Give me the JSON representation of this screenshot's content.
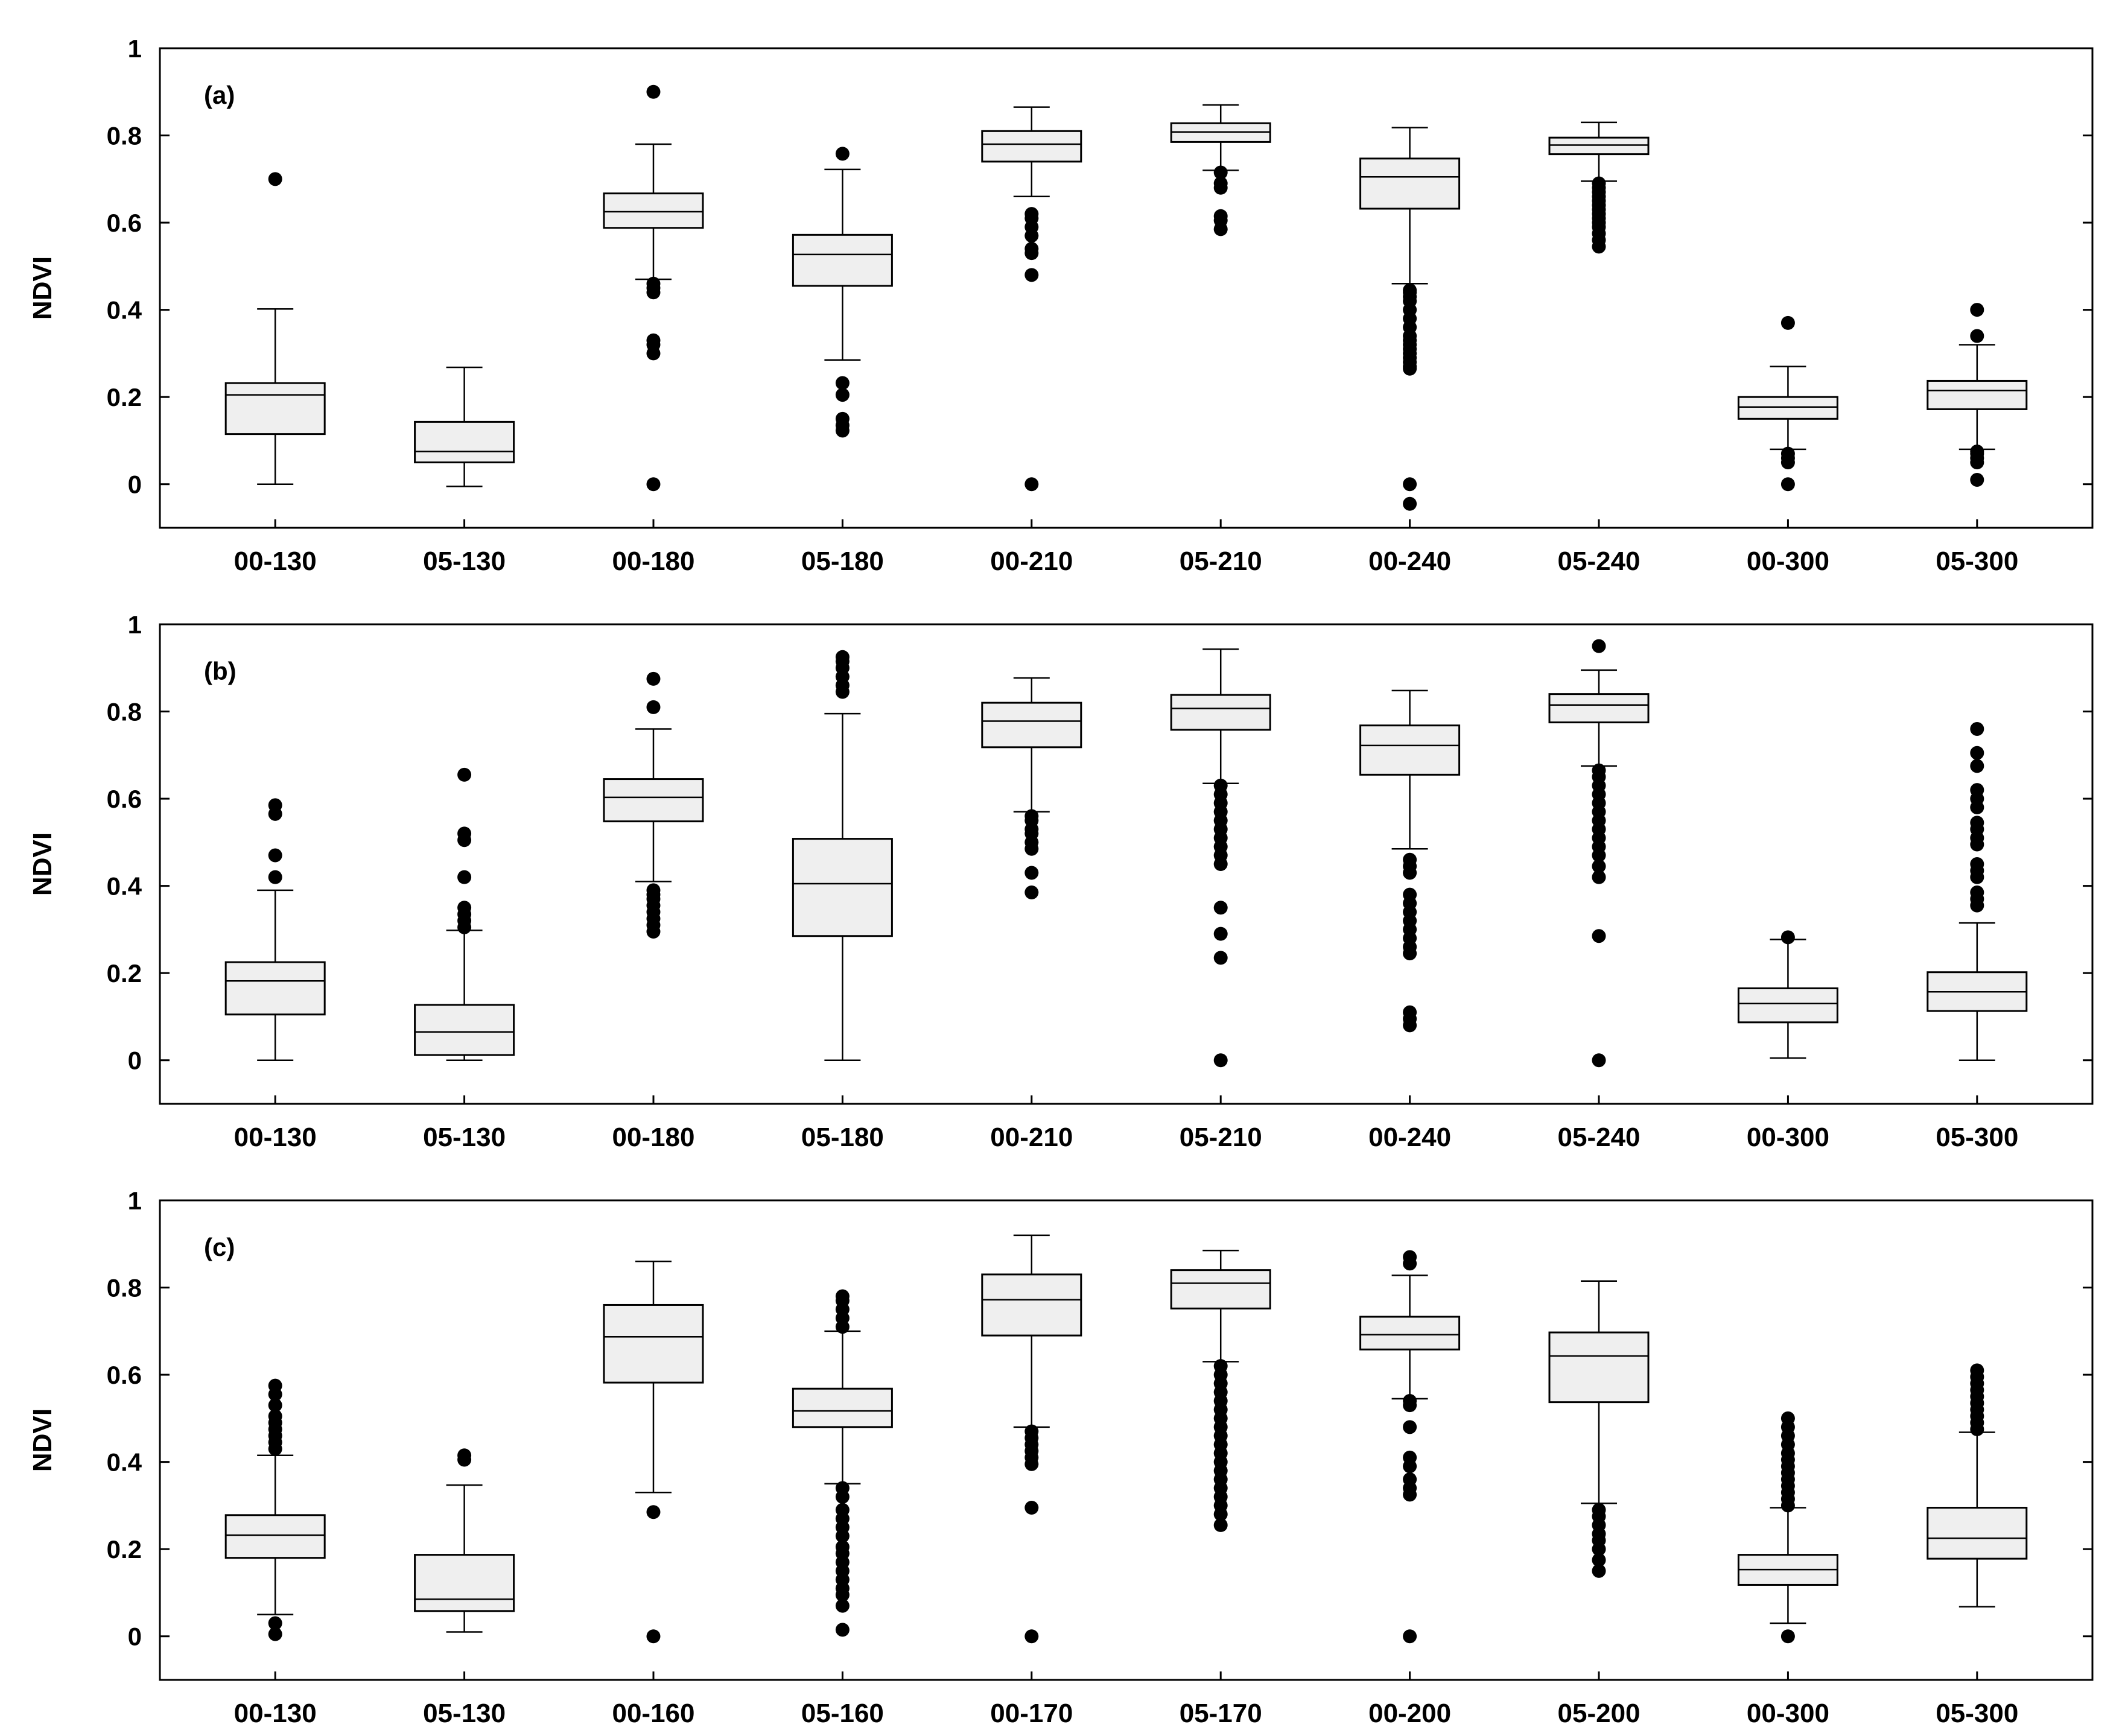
{
  "chart_data": [
    {
      "type": "box",
      "panel_label": "(a)",
      "ylabel": "NDVI",
      "ylim": [
        -0.1,
        1.0
      ],
      "yticks": [
        0,
        0.2,
        0.4,
        0.6,
        0.8,
        1
      ],
      "ytick_labels": [
        "0",
        "0.2",
        "0.4",
        "0.6",
        "0.8",
        "1"
      ],
      "categories": [
        "00-130",
        "05-130",
        "00-180",
        "05-180",
        "00-210",
        "05-210",
        "00-240",
        "05-240",
        "00-300",
        "05-300"
      ],
      "boxes": [
        {
          "whisker_low": 0.0,
          "q1": 0.115,
          "median": 0.205,
          "q3": 0.232,
          "whisker_high": 0.402,
          "outliers": [
            0.7
          ]
        },
        {
          "whisker_low": -0.005,
          "q1": 0.05,
          "median": 0.075,
          "q3": 0.143,
          "whisker_high": 0.268,
          "outliers": []
        },
        {
          "whisker_low": 0.47,
          "q1": 0.588,
          "median": 0.625,
          "q3": 0.667,
          "whisker_high": 0.78,
          "outliers": [
            0.9,
            0.46,
            0.45,
            0.44,
            0.33,
            0.32,
            0.3,
            0.0
          ]
        },
        {
          "whisker_low": 0.285,
          "q1": 0.455,
          "median": 0.527,
          "q3": 0.572,
          "whisker_high": 0.722,
          "outliers": [
            0.758,
            0.232,
            0.205,
            0.15,
            0.135,
            0.123
          ]
        },
        {
          "whisker_low": 0.66,
          "q1": 0.74,
          "median": 0.78,
          "q3": 0.81,
          "whisker_high": 0.865,
          "outliers": [
            0.62,
            0.61,
            0.59,
            0.57,
            0.54,
            0.53,
            0.48,
            0.0
          ]
        },
        {
          "whisker_low": 0.72,
          "q1": 0.785,
          "median": 0.808,
          "q3": 0.828,
          "whisker_high": 0.87,
          "outliers": [
            0.715,
            0.69,
            0.68,
            0.615,
            0.605,
            0.585
          ]
        },
        {
          "whisker_low": 0.46,
          "q1": 0.632,
          "median": 0.705,
          "q3": 0.747,
          "whisker_high": 0.818,
          "outliers": [
            0.445,
            0.44,
            0.43,
            0.42,
            0.4,
            0.38,
            0.36,
            0.34,
            0.33,
            0.32,
            0.31,
            0.3,
            0.29,
            0.28,
            0.27,
            0.265,
            0.0,
            -0.045
          ]
        },
        {
          "whisker_low": 0.695,
          "q1": 0.757,
          "median": 0.778,
          "q3": 0.795,
          "whisker_high": 0.83,
          "outliers": [
            0.69,
            0.68,
            0.67,
            0.66,
            0.65,
            0.64,
            0.63,
            0.62,
            0.61,
            0.6,
            0.59,
            0.575,
            0.56,
            0.545
          ]
        },
        {
          "whisker_low": 0.08,
          "q1": 0.15,
          "median": 0.177,
          "q3": 0.2,
          "whisker_high": 0.27,
          "outliers": [
            0.37,
            0.07,
            0.06,
            0.05,
            0.0
          ]
        },
        {
          "whisker_low": 0.08,
          "q1": 0.172,
          "median": 0.215,
          "q3": 0.237,
          "whisker_high": 0.32,
          "outliers": [
            0.4,
            0.34,
            0.075,
            0.07,
            0.06,
            0.05,
            0.01
          ]
        }
      ]
    },
    {
      "type": "box",
      "panel_label": "(b)",
      "ylabel": "NDVI",
      "ylim": [
        -0.1,
        1.0
      ],
      "yticks": [
        0,
        0.2,
        0.4,
        0.6,
        0.8,
        1
      ],
      "ytick_labels": [
        "0",
        "0.2",
        "0.4",
        "0.6",
        "0.8",
        "1"
      ],
      "categories": [
        "00-130",
        "05-130",
        "00-180",
        "05-180",
        "00-210",
        "05-210",
        "00-240",
        "05-240",
        "00-300",
        "05-300"
      ],
      "boxes": [
        {
          "whisker_low": 0.0,
          "q1": 0.105,
          "median": 0.182,
          "q3": 0.225,
          "whisker_high": 0.39,
          "outliers": [
            0.585,
            0.565,
            0.47,
            0.42
          ]
        },
        {
          "whisker_low": 0.0,
          "q1": 0.012,
          "median": 0.065,
          "q3": 0.127,
          "whisker_high": 0.298,
          "outliers": [
            0.655,
            0.52,
            0.505,
            0.42,
            0.35,
            0.335,
            0.32,
            0.305
          ]
        },
        {
          "whisker_low": 0.41,
          "q1": 0.548,
          "median": 0.603,
          "q3": 0.645,
          "whisker_high": 0.76,
          "outliers": [
            0.875,
            0.81,
            0.39,
            0.38,
            0.37,
            0.355,
            0.34,
            0.325,
            0.31,
            0.295
          ]
        },
        {
          "whisker_low": 0.0,
          "q1": 0.285,
          "median": 0.405,
          "q3": 0.508,
          "whisker_high": 0.795,
          "outliers": [
            0.925,
            0.915,
            0.9,
            0.88,
            0.86,
            0.845
          ]
        },
        {
          "whisker_low": 0.57,
          "q1": 0.718,
          "median": 0.778,
          "q3": 0.82,
          "whisker_high": 0.877,
          "outliers": [
            0.56,
            0.55,
            0.53,
            0.52,
            0.5,
            0.485,
            0.43,
            0.385
          ]
        },
        {
          "whisker_low": 0.635,
          "q1": 0.758,
          "median": 0.807,
          "q3": 0.838,
          "whisker_high": 0.943,
          "outliers": [
            0.63,
            0.61,
            0.59,
            0.57,
            0.55,
            0.53,
            0.51,
            0.49,
            0.47,
            0.45,
            0.35,
            0.29,
            0.235,
            0.0
          ]
        },
        {
          "whisker_low": 0.485,
          "q1": 0.655,
          "median": 0.722,
          "q3": 0.768,
          "whisker_high": 0.848,
          "outliers": [
            0.46,
            0.445,
            0.43,
            0.38,
            0.36,
            0.34,
            0.32,
            0.3,
            0.28,
            0.26,
            0.245,
            0.11,
            0.095,
            0.08
          ]
        },
        {
          "whisker_low": 0.675,
          "q1": 0.775,
          "median": 0.815,
          "q3": 0.84,
          "whisker_high": 0.895,
          "outliers": [
            0.95,
            0.665,
            0.65,
            0.63,
            0.61,
            0.59,
            0.57,
            0.55,
            0.53,
            0.51,
            0.49,
            0.47,
            0.445,
            0.42,
            0.285,
            0.0
          ]
        },
        {
          "whisker_low": 0.005,
          "q1": 0.087,
          "median": 0.13,
          "q3": 0.165,
          "whisker_high": 0.277,
          "outliers": [
            0.282
          ]
        },
        {
          "whisker_low": 0.0,
          "q1": 0.113,
          "median": 0.157,
          "q3": 0.202,
          "whisker_high": 0.315,
          "outliers": [
            0.76,
            0.705,
            0.675,
            0.62,
            0.6,
            0.58,
            0.545,
            0.53,
            0.51,
            0.495,
            0.45,
            0.435,
            0.42,
            0.385,
            0.37,
            0.355
          ]
        }
      ]
    },
    {
      "type": "box",
      "panel_label": "(c)",
      "ylabel": "NDVI",
      "ylim": [
        -0.1,
        1.0
      ],
      "yticks": [
        0,
        0.2,
        0.4,
        0.6,
        0.8,
        1
      ],
      "ytick_labels": [
        "0",
        "0.2",
        "0.4",
        "0.6",
        "0.8",
        "1"
      ],
      "categories": [
        "00-130",
        "05-130",
        "00-160",
        "05-160",
        "00-170",
        "05-170",
        "00-200",
        "05-200",
        "00-300",
        "05-300"
      ],
      "boxes": [
        {
          "whisker_low": 0.05,
          "q1": 0.18,
          "median": 0.232,
          "q3": 0.278,
          "whisker_high": 0.415,
          "outliers": [
            0.575,
            0.555,
            0.53,
            0.505,
            0.49,
            0.475,
            0.46,
            0.445,
            0.43,
            0.03,
            0.005
          ]
        },
        {
          "whisker_low": 0.01,
          "q1": 0.058,
          "median": 0.085,
          "q3": 0.187,
          "whisker_high": 0.347,
          "outliers": [
            0.415,
            0.405
          ]
        },
        {
          "whisker_low": 0.33,
          "q1": 0.582,
          "median": 0.687,
          "q3": 0.76,
          "whisker_high": 0.86,
          "outliers": [
            0.285,
            0.0
          ]
        },
        {
          "whisker_low": 0.35,
          "q1": 0.48,
          "median": 0.517,
          "q3": 0.568,
          "whisker_high": 0.7,
          "outliers": [
            0.78,
            0.77,
            0.75,
            0.73,
            0.71,
            0.34,
            0.32,
            0.29,
            0.27,
            0.25,
            0.23,
            0.205,
            0.19,
            0.17,
            0.15,
            0.13,
            0.11,
            0.095,
            0.07,
            0.015
          ]
        },
        {
          "whisker_low": 0.48,
          "q1": 0.69,
          "median": 0.772,
          "q3": 0.83,
          "whisker_high": 0.92,
          "outliers": [
            0.47,
            0.455,
            0.44,
            0.425,
            0.41,
            0.395,
            0.295,
            0.0
          ]
        },
        {
          "whisker_low": 0.63,
          "q1": 0.752,
          "median": 0.81,
          "q3": 0.84,
          "whisker_high": 0.885,
          "outliers": [
            0.62,
            0.6,
            0.58,
            0.56,
            0.54,
            0.52,
            0.5,
            0.48,
            0.46,
            0.44,
            0.42,
            0.4,
            0.38,
            0.36,
            0.34,
            0.32,
            0.3,
            0.28,
            0.255
          ]
        },
        {
          "whisker_low": 0.545,
          "q1": 0.658,
          "median": 0.692,
          "q3": 0.733,
          "whisker_high": 0.828,
          "outliers": [
            0.87,
            0.855,
            0.54,
            0.53,
            0.48,
            0.41,
            0.39,
            0.36,
            0.34,
            0.325,
            0.0
          ]
        },
        {
          "whisker_low": 0.305,
          "q1": 0.537,
          "median": 0.643,
          "q3": 0.697,
          "whisker_high": 0.815,
          "outliers": [
            0.29,
            0.275,
            0.255,
            0.235,
            0.22,
            0.2,
            0.175,
            0.15
          ]
        },
        {
          "whisker_low": 0.03,
          "q1": 0.118,
          "median": 0.153,
          "q3": 0.187,
          "whisker_high": 0.295,
          "outliers": [
            0.5,
            0.48,
            0.46,
            0.44,
            0.42,
            0.405,
            0.39,
            0.375,
            0.36,
            0.345,
            0.33,
            0.315,
            0.3,
            0.0
          ]
        },
        {
          "whisker_low": 0.068,
          "q1": 0.178,
          "median": 0.225,
          "q3": 0.295,
          "whisker_high": 0.468,
          "outliers": [
            0.61,
            0.595,
            0.58,
            0.565,
            0.55,
            0.535,
            0.52,
            0.505,
            0.49,
            0.475
          ]
        }
      ]
    }
  ]
}
